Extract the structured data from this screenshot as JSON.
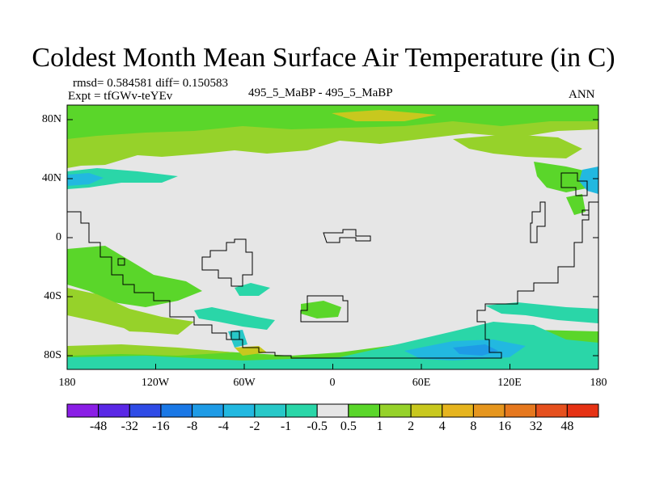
{
  "title": "Coldest Month Mean Surface Air Temperature (in C)",
  "stats": "rmsd= 0.584581 diff= 0.150583",
  "expt": "Expt = tfGWv-teYEv",
  "comparison": "495_5_MaBP - 495_5_MaBP",
  "season": "ANN",
  "y_ticks": [
    "80N",
    "40N",
    "0",
    "40S",
    "80S"
  ],
  "x_ticks": [
    "180",
    "120W",
    "60W",
    "0",
    "60E",
    "120E",
    "180"
  ],
  "colorbar": {
    "labels": [
      "-48",
      "-32",
      "-16",
      "-8",
      "-4",
      "-2",
      "-1",
      "-0.5",
      "0.5",
      "1",
      "2",
      "4",
      "8",
      "16",
      "32",
      "48"
    ],
    "colors": [
      "#8a1ee6",
      "#5a28e6",
      "#2f4be6",
      "#1a78e6",
      "#1e9be6",
      "#22b8e0",
      "#28c8c8",
      "#2ad6a8",
      "#e6e6e6",
      "#5ad62a",
      "#96d22a",
      "#c8c81e",
      "#e6b41e",
      "#e6961e",
      "#e6781e",
      "#e6501e",
      "#e63214"
    ]
  },
  "map_colors": {
    "background": "#e6e6e6",
    "pos_light": "#96d22a",
    "pos_mid": "#5ad62a",
    "neg_light": "#2ad6a8",
    "neg_mid": "#28c8c8",
    "neg_dark": "#22b8e0",
    "neg_deep": "#1e9be6",
    "pos_yellow": "#c8c81e",
    "coast": "#000000"
  }
}
